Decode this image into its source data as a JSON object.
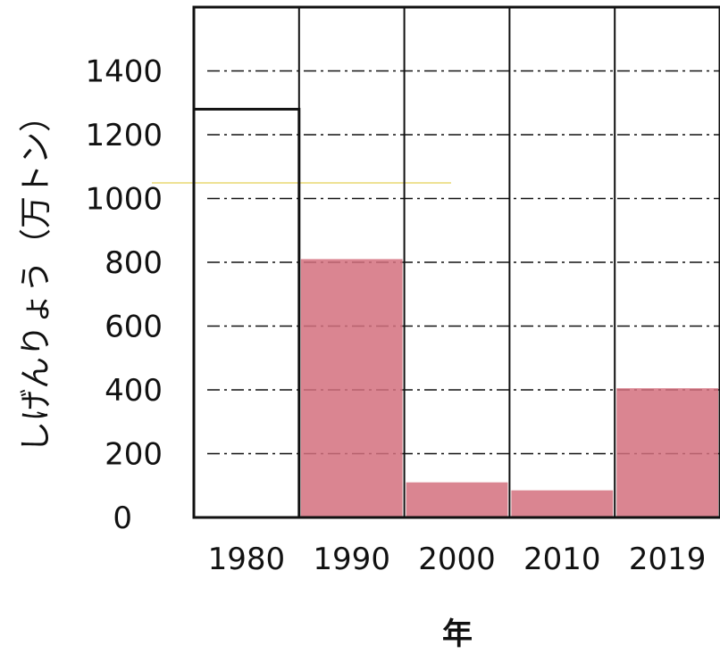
{
  "chart_data": {
    "type": "bar",
    "xlabel": "年",
    "ylabel": "しげんりょう（万トン）",
    "categories": [
      "1980",
      "1990",
      "2000",
      "2010",
      "2019"
    ],
    "values": [
      1280,
      810,
      110,
      85,
      405
    ],
    "y_ticks": [
      "0",
      "200",
      "400",
      "600",
      "800",
      "1000",
      "1200",
      "1400"
    ],
    "ylim": [
      0,
      1600
    ],
    "grid": "dash-dot horizontal lines at each 200",
    "colors": {
      "filled_bar": "#d4707e",
      "outline_bar": "#111111",
      "grid": "#111111",
      "stray_line": "#e8d870"
    },
    "bar_styles": [
      "outline",
      "colored",
      "colored",
      "colored",
      "colored"
    ]
  }
}
